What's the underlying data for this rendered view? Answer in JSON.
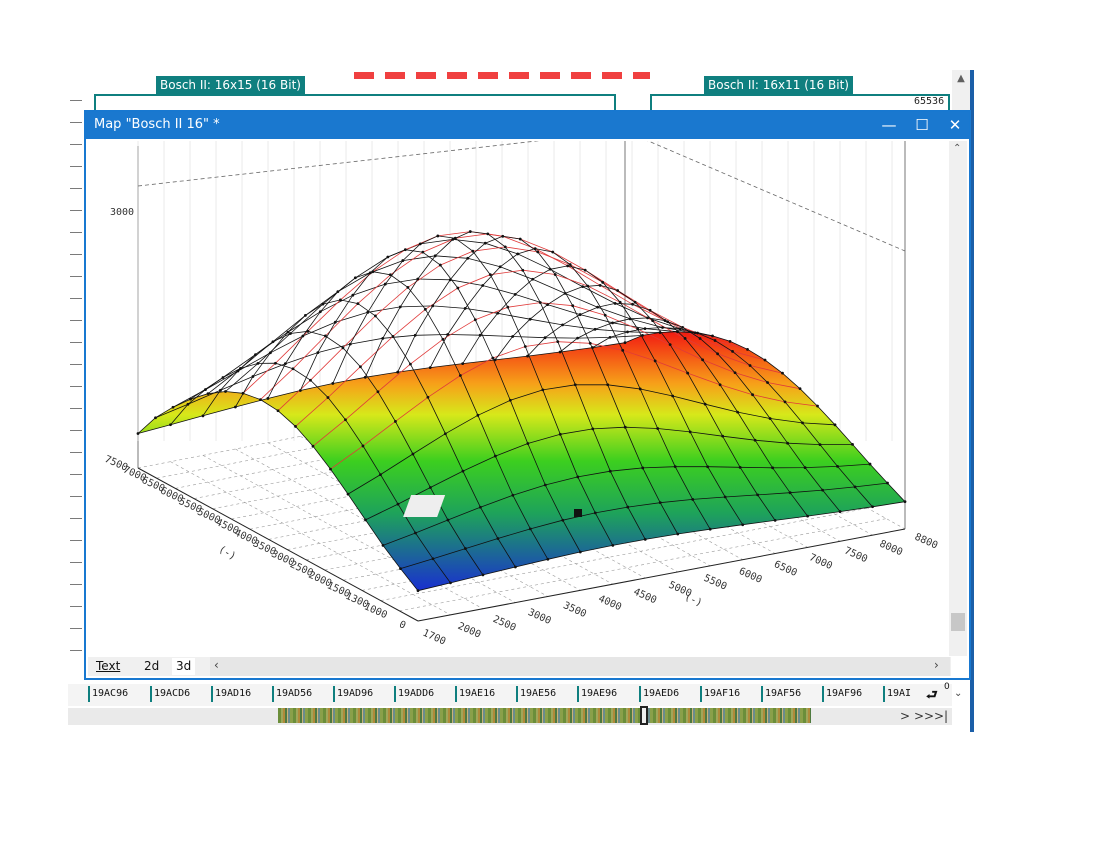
{
  "background_editor": {
    "labels": [
      "Bosch II: 16x15 (16 Bit)",
      "Bosch II: 16x11 (16 Bit)"
    ],
    "max_value": "65536",
    "corner_value": "0",
    "addresses": [
      "19AC96",
      "19ACD6",
      "19AD16",
      "19AD56",
      "19AD96",
      "19ADD6",
      "19AE16",
      "19AE56",
      "19AE96",
      "19AED6",
      "19AF16",
      "19AF56",
      "19AF96",
      "19AI"
    ],
    "nav_buttons": [
      ">",
      ">>",
      ">|"
    ]
  },
  "map_window": {
    "title": "Map \"Bosch II 16\" *",
    "controls": {
      "minimize": "—",
      "maximize": "☐",
      "close": "✕"
    },
    "tabs": [
      "Text",
      "2d",
      "3d"
    ],
    "active_tab": "3d"
  },
  "chart_data": {
    "type": "surface",
    "z_tick_label": "3000",
    "axis_left_label": "(-)",
    "axis_right_label": "(-)",
    "left_axis_ticks": [
      "7500",
      "7000",
      "6500",
      "6000",
      "5500",
      "5000",
      "4500",
      "4000",
      "3500",
      "3000",
      "2500",
      "2000",
      "1500",
      "1300",
      "1000",
      "0"
    ],
    "right_axis_ticks": [
      "1700",
      "2000",
      "2500",
      "3000",
      "3500",
      "4000",
      "4500",
      "5000",
      "5500",
      "6000",
      "6500",
      "7000",
      "7500",
      "8000",
      "8800"
    ],
    "colors": {
      "low": "#1a2fd0",
      "mid": "#3ccf1f",
      "high_mid": "#f2e21a",
      "high": "#f21a12"
    }
  }
}
